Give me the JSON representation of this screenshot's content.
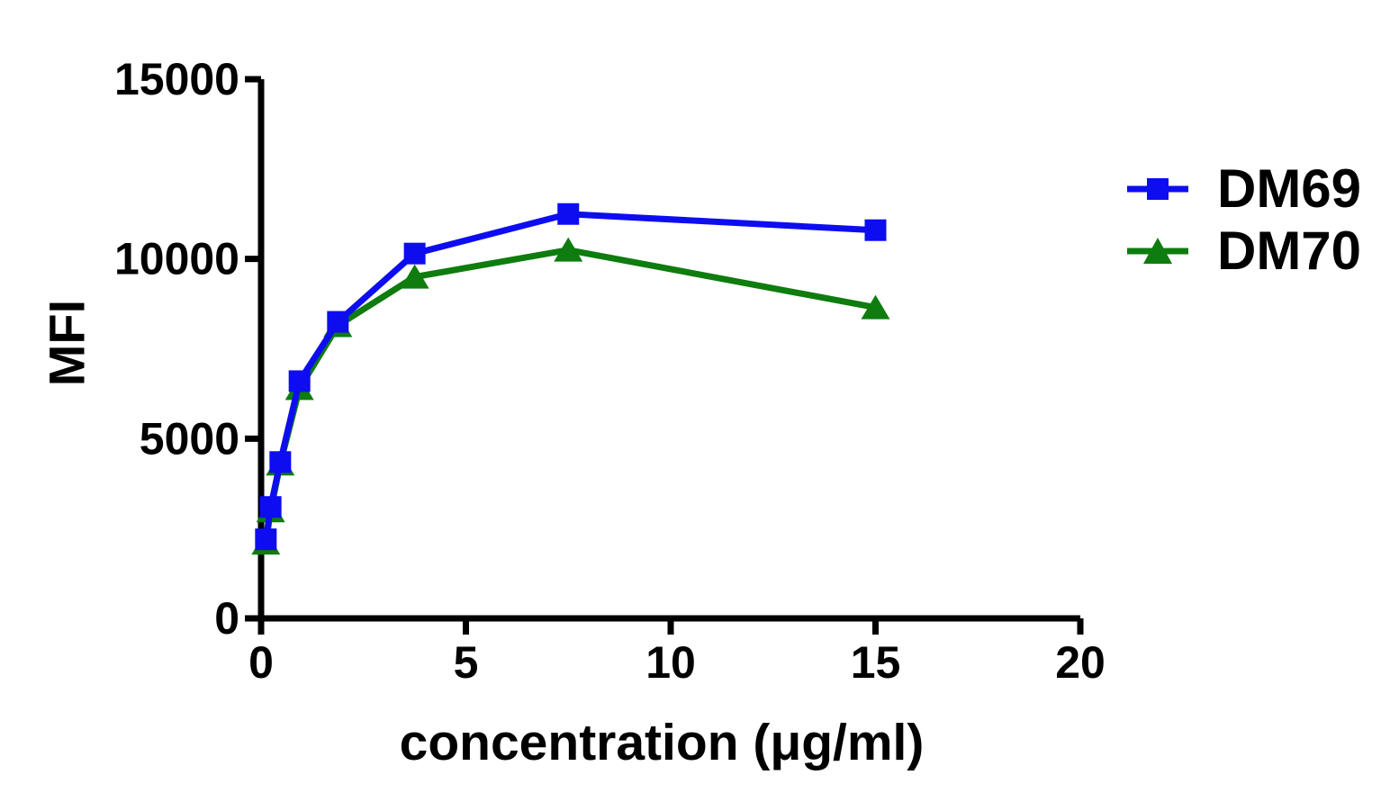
{
  "figure": {
    "background": "#ffffff",
    "axis_color": "#000000",
    "text_color": "#000000"
  },
  "chart_data": {
    "type": "line",
    "title": "",
    "xlabel": "concentration (μg/ml)",
    "ylabel": "MFI",
    "x": [
      0.117,
      0.234,
      0.469,
      0.938,
      1.875,
      3.75,
      7.5,
      15
    ],
    "series": [
      {
        "name": "DM69",
        "color": "#0d0df0",
        "marker": "square",
        "values": [
          2200,
          3100,
          4350,
          6600,
          8250,
          10150,
          11250,
          10800
        ]
      },
      {
        "name": "DM70",
        "color": "#0e7c0e",
        "marker": "triangle",
        "values": [
          2100,
          3000,
          4300,
          6400,
          8150,
          9500,
          10250,
          8650
        ]
      }
    ],
    "xlim": [
      0,
      20
    ],
    "ylim": [
      0,
      15000
    ],
    "xticks": [
      0,
      5,
      10,
      15,
      20
    ],
    "yticks": [
      0,
      5000,
      10000,
      15000
    ],
    "grid": false,
    "legend_position": "right-of-plot"
  }
}
